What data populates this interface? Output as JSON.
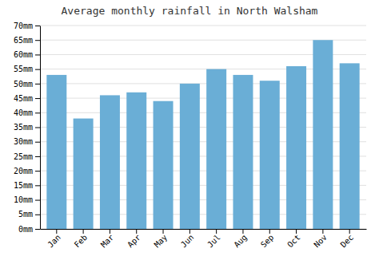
{
  "chart_data": {
    "type": "bar",
    "title": "Average monthly rainfall in North Walsham",
    "categories": [
      "Jan",
      "Feb",
      "Mar",
      "Apr",
      "May",
      "Jun",
      "Jul",
      "Aug",
      "Sep",
      "Oct",
      "Nov",
      "Dec"
    ],
    "values": [
      53,
      38,
      46,
      47,
      44,
      50,
      55,
      53,
      51,
      56,
      65,
      57
    ],
    "color": "#6aaed6",
    "ylim": [
      0,
      70
    ],
    "yticks": [
      {
        "value": 0,
        "label": "0mm"
      },
      {
        "value": 5,
        "label": "5mm"
      },
      {
        "value": 10,
        "label": "10mm"
      },
      {
        "value": 15,
        "label": "15mm"
      },
      {
        "value": 20,
        "label": "20mm"
      },
      {
        "value": 25,
        "label": "25mm"
      },
      {
        "value": 30,
        "label": "30mm"
      },
      {
        "value": 35,
        "label": "35mm"
      },
      {
        "value": 40,
        "label": "40mm"
      },
      {
        "value": 45,
        "label": "45mm"
      },
      {
        "value": 50,
        "label": "50mm"
      },
      {
        "value": 55,
        "label": "55mm"
      },
      {
        "value": 60,
        "label": "60mm"
      },
      {
        "value": 65,
        "label": "65mm"
      },
      {
        "value": 70,
        "label": "70mm"
      }
    ],
    "grid": true
  }
}
